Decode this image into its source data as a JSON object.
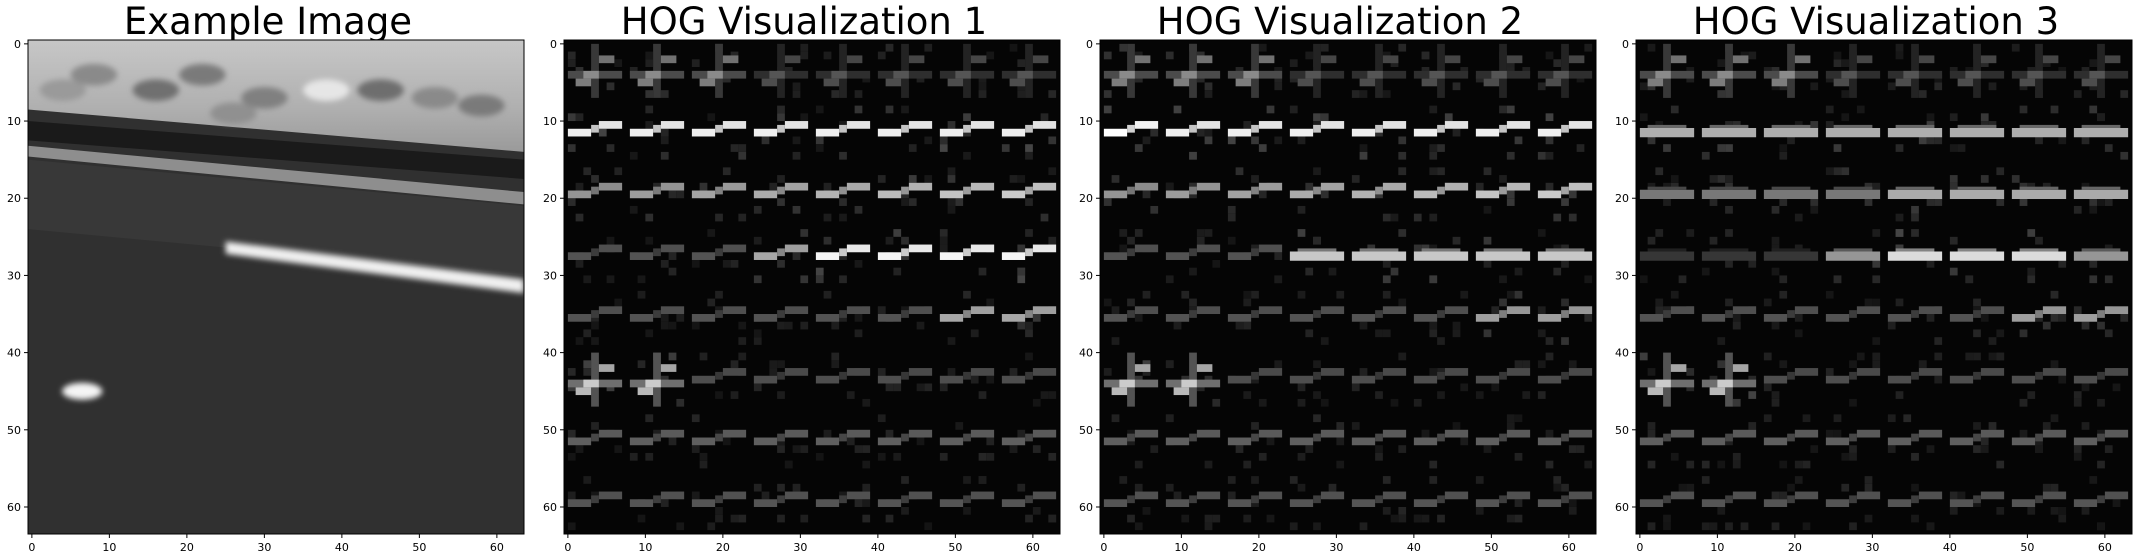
{
  "figure": {
    "panels": [
      {
        "id": "example",
        "title": "Example Image",
        "kind": "grayscale-image"
      },
      {
        "id": "hog1",
        "title": "HOG Visualization 1",
        "kind": "hog"
      },
      {
        "id": "hog2",
        "title": "HOG Visualization 2",
        "kind": "hog"
      },
      {
        "id": "hog3",
        "title": "HOG Visualization 3",
        "kind": "hog"
      }
    ],
    "axes": {
      "xlim": [
        -0.5,
        63.5
      ],
      "ylim": [
        63.5,
        -0.5
      ],
      "x_ticks": [
        0,
        10,
        20,
        30,
        40,
        50,
        60
      ],
      "y_ticks": [
        0,
        10,
        20,
        30,
        40,
        50,
        60
      ],
      "x_tick_labels": [
        "0",
        "10",
        "20",
        "30",
        "40",
        "50",
        "60"
      ],
      "y_tick_labels": [
        "0",
        "10",
        "20",
        "30",
        "40",
        "50",
        "60"
      ]
    },
    "colors": {
      "background": "#ffffff",
      "hog_background": "#050505",
      "axis": "#000000"
    }
  }
}
